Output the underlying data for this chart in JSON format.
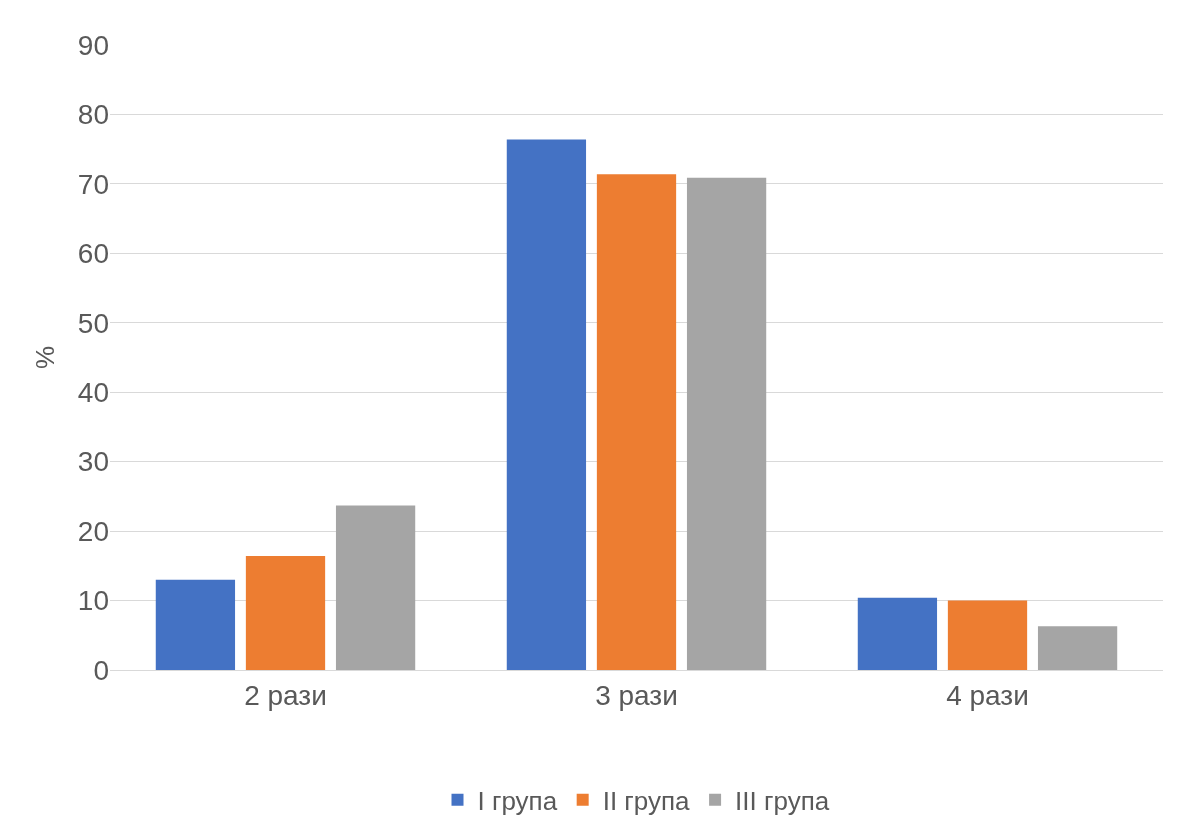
{
  "chart_data": {
    "type": "bar",
    "ylabel": "%",
    "categories": [
      "2 рази",
      "3 рази",
      "4 рази"
    ],
    "series": [
      {
        "name": "I група",
        "color": "#4472c4",
        "values": [
          13.0,
          76.4,
          10.4
        ]
      },
      {
        "name": "II група",
        "color": "#ed7d31",
        "values": [
          16.4,
          71.4,
          10.0
        ]
      },
      {
        "name": "III група",
        "color": "#a5a5a5",
        "values": [
          23.7,
          70.9,
          6.3
        ]
      }
    ],
    "ylim": [
      0,
      90
    ],
    "yticks": [
      0,
      10,
      20,
      30,
      40,
      50,
      60,
      70,
      80,
      90
    ],
    "grid": "y",
    "legend": "bottom"
  }
}
